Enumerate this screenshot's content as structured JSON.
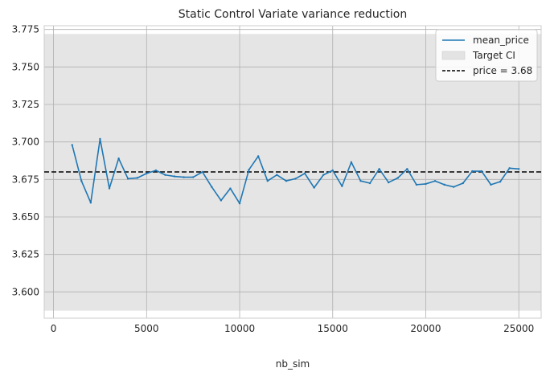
{
  "chart_data": {
    "type": "line",
    "title": "Static Control Variate variance reduction",
    "xlabel": "nb_sim",
    "ylabel": "",
    "xlim": [
      -500,
      26200
    ],
    "ylim": [
      3.5825,
      3.7775
    ],
    "xticks": [
      0,
      5000,
      10000,
      15000,
      20000,
      25000
    ],
    "xtick_labels": [
      "0",
      "5000",
      "10000",
      "15000",
      "20000",
      "25000"
    ],
    "yticks": [
      3.6,
      3.625,
      3.65,
      3.675,
      3.7,
      3.725,
      3.75,
      3.775
    ],
    "ytick_labels": [
      "3.600",
      "3.625",
      "3.650",
      "3.675",
      "3.700",
      "3.725",
      "3.750",
      "3.775"
    ],
    "grid": true,
    "legend_position": "top-right",
    "series": [
      {
        "name": "mean_price",
        "kind": "line",
        "color": "#1f77b4",
        "x": [
          1000,
          1500,
          2000,
          2500,
          3000,
          3500,
          4000,
          4500,
          5000,
          5500,
          6000,
          6500,
          7000,
          7500,
          8000,
          8500,
          9000,
          9500,
          10000,
          10500,
          11000,
          11500,
          12000,
          12500,
          13000,
          13500,
          14000,
          14500,
          15000,
          15500,
          16000,
          16500,
          17000,
          17500,
          18000,
          18500,
          19000,
          19500,
          20000,
          20500,
          21000,
          21500,
          22000,
          22500,
          23000,
          23500,
          24000,
          24500,
          25000
        ],
        "y": [
          3.698,
          3.674,
          3.6595,
          3.702,
          3.669,
          3.689,
          3.6755,
          3.676,
          3.679,
          3.681,
          3.678,
          3.677,
          3.6765,
          3.6765,
          3.68,
          3.67,
          3.661,
          3.669,
          3.659,
          3.6815,
          3.6905,
          3.674,
          3.678,
          3.674,
          3.6755,
          3.679,
          3.6695,
          3.678,
          3.681,
          3.6705,
          3.6865,
          3.674,
          3.6725,
          3.682,
          3.673,
          3.676,
          3.682,
          3.6715,
          3.672,
          3.674,
          3.6715,
          3.67,
          3.6725,
          3.6805,
          3.6805,
          3.6715,
          3.6735,
          3.6825,
          3.682
        ]
      },
      {
        "name": "Target CI",
        "kind": "band",
        "color": "#d3d3d3",
        "lower": 3.5875,
        "upper": 3.772
      },
      {
        "name": "price = 3.68",
        "kind": "hline",
        "color": "#000000",
        "value": 3.68
      }
    ]
  }
}
